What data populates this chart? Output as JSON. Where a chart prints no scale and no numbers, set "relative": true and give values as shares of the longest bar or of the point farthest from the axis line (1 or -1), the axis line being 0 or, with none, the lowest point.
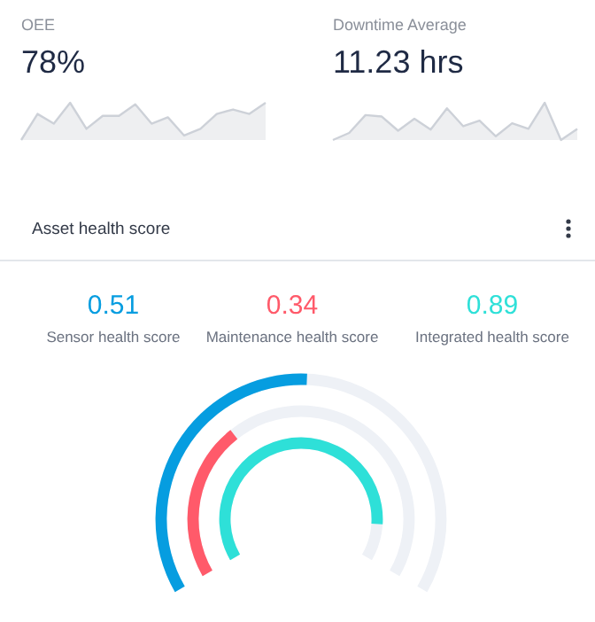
{
  "chart_data": [
    {
      "type": "area",
      "title": "OEE",
      "annotations": [
        "78%"
      ],
      "relative": true,
      "categories": [
        null,
        null,
        null,
        null,
        null,
        null,
        null,
        null,
        null,
        null,
        null,
        null,
        null,
        null,
        null,
        null
      ],
      "values": [
        0,
        0.7,
        0.44,
        1.0,
        0.3,
        0.65,
        0.65,
        0.96,
        0.44,
        0.61,
        0.12,
        0.3,
        0.7,
        0.82,
        0.7,
        1.0
      ],
      "color": "#cdd1d8"
    },
    {
      "type": "area",
      "title": "Downtime Average",
      "annotations": [
        "11.23 hrs"
      ],
      "relative": true,
      "categories": [
        null,
        null,
        null,
        null,
        null,
        null,
        null,
        null,
        null,
        null,
        null,
        null,
        null,
        null,
        null,
        null
      ],
      "values": [
        0,
        0.19,
        0.67,
        0.63,
        0.25,
        0.57,
        0.28,
        0.85,
        0.37,
        0.52,
        0.1,
        0.45,
        0.3,
        1.0,
        0,
        0.3
      ],
      "color": "#cdd1d8"
    },
    {
      "type": "other",
      "title": "Asset health score",
      "data_labels": true,
      "categories": [
        "Sensor health score",
        "Maintenance health score",
        "Integrated health score"
      ],
      "values": [
        0.51,
        0.34,
        0.89
      ],
      "colors": [
        "#069de0",
        "#ff5a6a",
        "#2ee0d8"
      ]
    }
  ]
}
